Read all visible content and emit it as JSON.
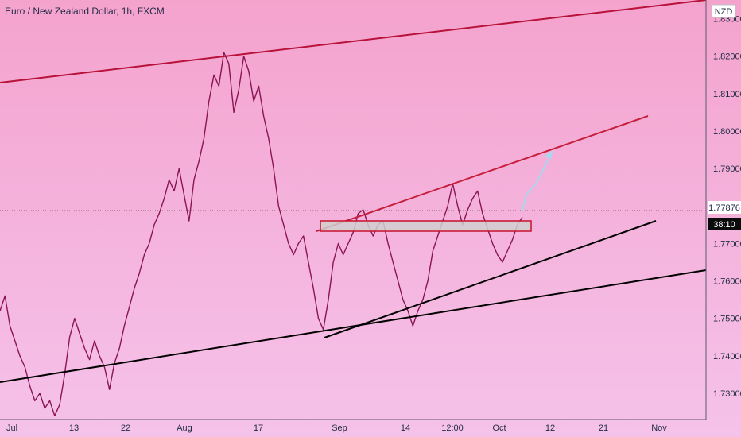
{
  "chart_data": {
    "type": "line",
    "title": "Euro / New Zealand Dollar, 1h, FXCM",
    "currency": "NZD",
    "last_price_label": "1.77876",
    "countdown_label": "38:10",
    "x_tick_labels": [
      "Jul",
      "13",
      "22",
      "Aug",
      "17",
      "Sep",
      "14",
      "12:00",
      "Oct",
      "12",
      "21",
      "Nov"
    ],
    "y_tick_labels": [
      "1.83000",
      "1.82000",
      "1.81000",
      "1.80000",
      "1.79000",
      "1.77000",
      "1.76000",
      "1.75000",
      "1.74000",
      "1.73000"
    ],
    "ylim": [
      1.723,
      1.835
    ],
    "last_price": 1.77876,
    "series": [
      {
        "values": [
          1.752,
          1.756,
          1.748,
          1.744,
          1.74,
          1.737,
          1.732,
          1.728,
          1.73,
          1.726,
          1.728,
          1.724,
          1.727,
          1.735,
          1.745,
          1.75,
          1.746,
          1.742,
          1.739,
          1.744,
          1.74,
          1.737,
          1.731,
          1.738,
          1.742,
          1.748,
          1.753,
          1.758,
          1.762,
          1.767,
          1.77,
          1.775,
          1.778,
          1.782,
          1.787,
          1.784,
          1.79,
          1.783,
          1.776,
          1.787,
          1.792,
          1.798,
          1.808,
          1.815,
          1.812,
          1.821,
          1.818,
          1.805,
          1.811,
          1.82,
          1.816,
          1.808,
          1.812,
          1.804,
          1.798,
          1.79,
          1.78,
          1.775,
          1.77,
          1.767,
          1.77,
          1.772,
          1.765,
          1.758,
          1.75,
          1.747,
          1.755,
          1.765,
          1.77,
          1.767,
          1.77,
          1.773,
          1.778,
          1.779,
          1.775,
          1.772,
          1.775,
          1.776,
          1.77,
          1.765,
          1.76,
          1.755,
          1.752,
          1.748,
          1.752,
          1.755,
          1.76,
          1.768,
          1.772,
          1.776,
          1.78,
          1.786,
          1.78,
          1.775,
          1.779,
          1.782,
          1.784,
          1.778,
          1.774,
          1.77,
          1.767,
          1.765,
          1.768,
          1.771,
          1.775,
          1.777
        ]
      }
    ]
  }
}
